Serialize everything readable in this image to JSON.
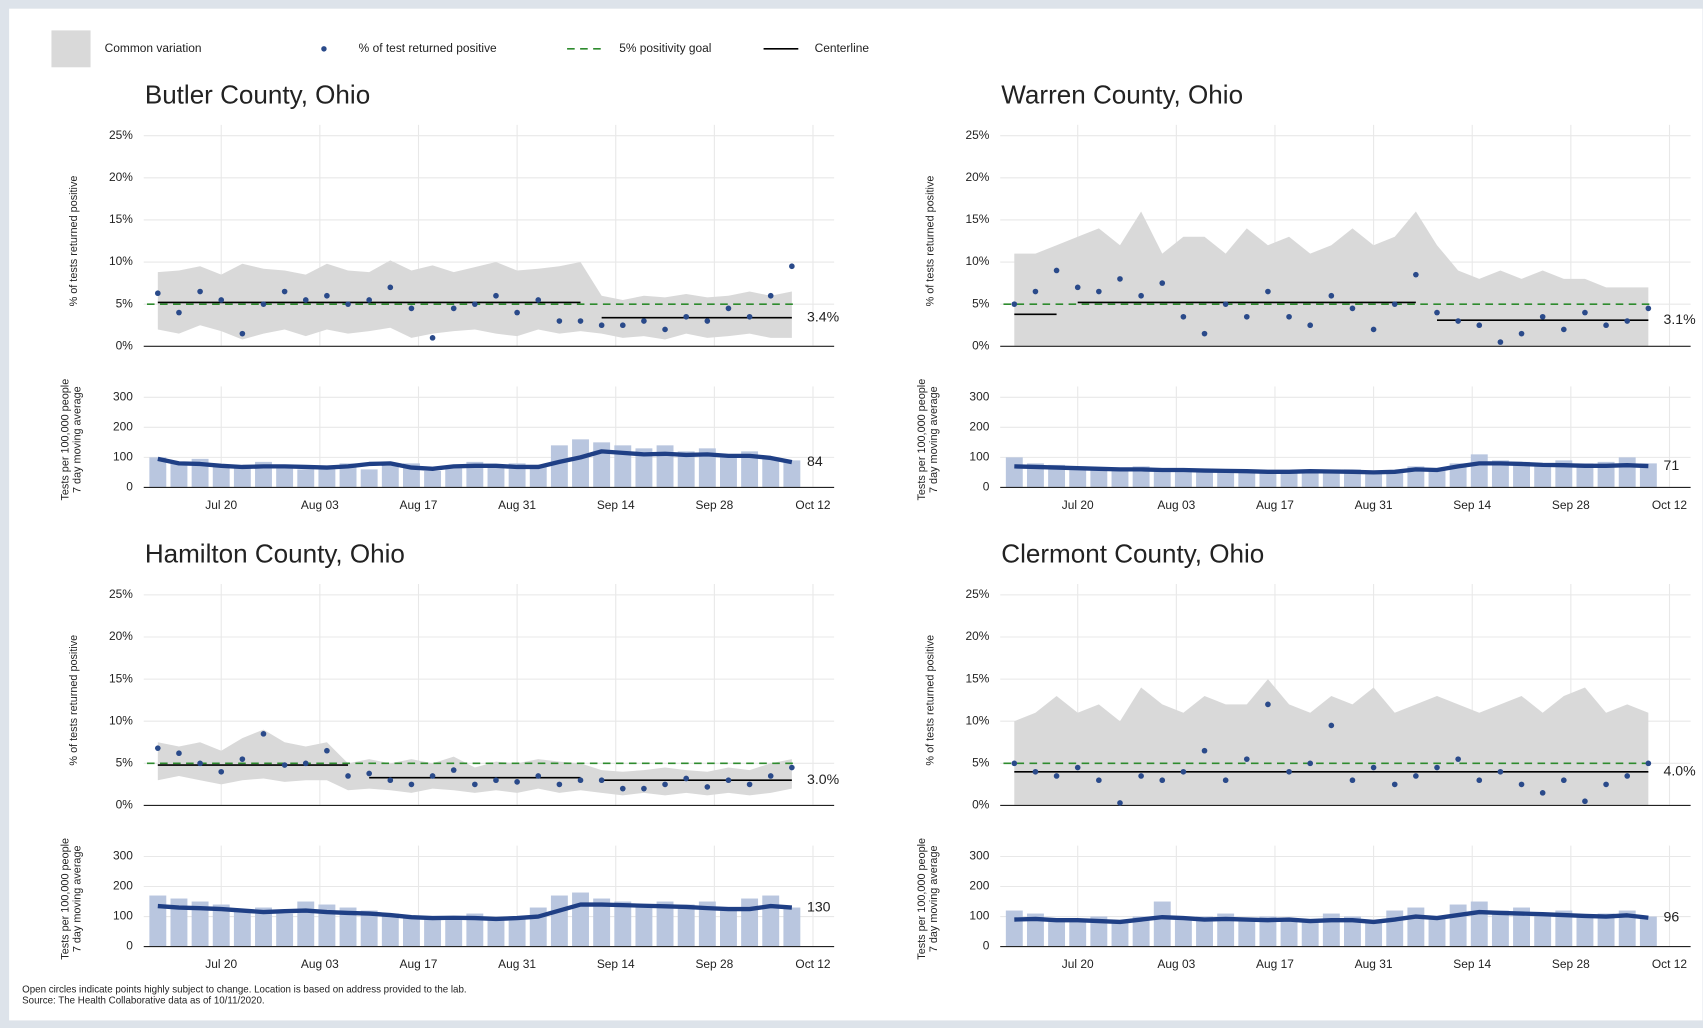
{
  "legend": {
    "band": "Common variation",
    "points": "% of test returned positive",
    "goal": "5% positivity goal",
    "centerline": "Centerline"
  },
  "footnote": [
    "Open circles indicate points highly subject to change. Location is based on address provided to the lab.",
    "Source: The Health Collaborative data as of 10/11/2020."
  ],
  "chart_data": [
    {
      "type": "control",
      "title": "Butler County, Ohio",
      "x": [
        "Jul 11",
        "Jul 14",
        "Jul 17",
        "Jul 20",
        "Jul 23",
        "Jul 26",
        "Jul 29",
        "Aug 1",
        "Aug 4",
        "Aug 7",
        "Aug 10",
        "Aug 13",
        "Aug 16",
        "Aug 19",
        "Aug 22",
        "Aug 25",
        "Aug 28",
        "Aug 31",
        "Sep 3",
        "Sep 6",
        "Sep 9",
        "Sep 12",
        "Sep 15",
        "Sep 18",
        "Sep 21",
        "Sep 24",
        "Sep 27",
        "Sep 30",
        "Oct 3",
        "Oct 6",
        "Oct 9"
      ],
      "xlim": [
        "Jul 9",
        "Oct 15"
      ],
      "xticks": [
        "Jul 20",
        "Aug 03",
        "Aug 17",
        "Aug 31",
        "Sep 14",
        "Sep 28",
        "Oct 12"
      ],
      "ylabel": "% of tests returned positive",
      "ylim": [
        0,
        25
      ],
      "yticks": [
        {
          "value": 0,
          "label": "0%"
        },
        {
          "value": 5,
          "label": "5%"
        },
        {
          "value": 10,
          "label": "10%"
        },
        {
          "value": 15,
          "label": "15%"
        },
        {
          "value": 20,
          "label": "20%"
        },
        {
          "value": 25,
          "label": "25%"
        }
      ],
      "goal": 5,
      "goal_color": "#2e8b2e",
      "band_color": "#d9d9d9",
      "series": [
        {
          "name": "% of test returned positive",
          "color": "#2a4a8a",
          "values": [
            6.3,
            4.0,
            6.5,
            5.5,
            1.5,
            5.0,
            6.5,
            5.5,
            6.0,
            5.0,
            5.5,
            7.0,
            4.5,
            1.0,
            4.5,
            5.0,
            6.0,
            4.0,
            5.5,
            3.0,
            3.0,
            2.5,
            2.5,
            3.0,
            2.0,
            3.5,
            3.0,
            4.5,
            3.5,
            6.0,
            9.5
          ]
        }
      ],
      "band_upper": [
        8.8,
        9.0,
        9.5,
        8.5,
        9.8,
        9.2,
        9.0,
        8.5,
        9.8,
        9.0,
        8.8,
        10.2,
        9.0,
        9.6,
        8.8,
        9.4,
        10.0,
        9.0,
        9.2,
        9.5,
        10.0,
        6.0,
        5.5,
        6.0,
        5.8,
        6.2,
        5.8,
        6.0,
        6.5,
        6.0,
        6.5
      ],
      "band_lower": [
        2.0,
        1.5,
        2.5,
        1.8,
        0.8,
        1.5,
        2.0,
        1.2,
        2.0,
        1.5,
        1.8,
        2.2,
        1.0,
        1.5,
        1.8,
        2.0,
        1.5,
        1.2,
        2.0,
        1.5,
        1.8,
        1.5,
        1.0,
        1.2,
        0.8,
        1.5,
        1.0,
        1.2,
        1.5,
        1.0,
        1.0
      ],
      "centerline": [
        {
          "from": "Jul 11",
          "to": "Sep 9",
          "value": 5.2
        },
        {
          "from": "Sep 12",
          "to": "Oct 9",
          "value": 3.4,
          "label": "3.4%"
        }
      ],
      "tests": {
        "ylabel": [
          "Tests per 100,000 people",
          "7 day moving average"
        ],
        "ylim": [
          0,
          300
        ],
        "yticks": [
          0,
          100,
          200,
          300
        ],
        "bar_color": "#b9c6df",
        "line_color": "#1f3f85",
        "bars": [
          100,
          80,
          95,
          70,
          65,
          85,
          75,
          60,
          70,
          80,
          60,
          75,
          80,
          55,
          70,
          85,
          70,
          80,
          75,
          140,
          160,
          150,
          140,
          130,
          140,
          120,
          130,
          110,
          120,
          100,
          90
        ],
        "average": [
          95,
          80,
          78,
          72,
          68,
          70,
          70,
          68,
          66,
          70,
          78,
          80,
          66,
          62,
          70,
          72,
          72,
          68,
          68,
          85,
          100,
          120,
          115,
          110,
          112,
          108,
          110,
          105,
          105,
          98,
          84
        ]
      }
    },
    {
      "type": "control",
      "title": "Warren County, Ohio",
      "x": [
        "Jul 11",
        "Jul 14",
        "Jul 17",
        "Jul 20",
        "Jul 23",
        "Jul 26",
        "Jul 29",
        "Aug 1",
        "Aug 4",
        "Aug 7",
        "Aug 10",
        "Aug 13",
        "Aug 16",
        "Aug 19",
        "Aug 22",
        "Aug 25",
        "Aug 28",
        "Aug 31",
        "Sep 3",
        "Sep 6",
        "Sep 9",
        "Sep 12",
        "Sep 15",
        "Sep 18",
        "Sep 21",
        "Sep 24",
        "Sep 27",
        "Sep 30",
        "Oct 3",
        "Oct 6",
        "Oct 9"
      ],
      "xlim": [
        "Jul 9",
        "Oct 15"
      ],
      "xticks": [
        "Jul 20",
        "Aug 03",
        "Aug 17",
        "Aug 31",
        "Sep 14",
        "Sep 28",
        "Oct 12"
      ],
      "ylabel": "% of tests returned positive",
      "ylim": [
        0,
        25
      ],
      "yticks": [
        {
          "value": 0,
          "label": "0%"
        },
        {
          "value": 5,
          "label": "5%"
        },
        {
          "value": 10,
          "label": "10%"
        },
        {
          "value": 15,
          "label": "15%"
        },
        {
          "value": 20,
          "label": "20%"
        },
        {
          "value": 25,
          "label": "25%"
        }
      ],
      "goal": 5,
      "goal_color": "#2e8b2e",
      "band_color": "#d9d9d9",
      "series": [
        {
          "name": "% of test returned positive",
          "color": "#2a4a8a",
          "values": [
            5.0,
            6.5,
            9.0,
            7.0,
            6.5,
            8.0,
            6.0,
            7.5,
            3.5,
            1.5,
            5.0,
            3.5,
            6.5,
            3.5,
            2.5,
            6.0,
            4.5,
            2.0,
            5.0,
            8.5,
            4.0,
            3.0,
            2.5,
            0.5,
            1.5,
            3.5,
            2.0,
            4.0,
            2.5,
            3.0,
            4.5
          ]
        }
      ],
      "band_upper": [
        11,
        11,
        12,
        13,
        14,
        12,
        16,
        11,
        13,
        13,
        11,
        14,
        12,
        13,
        11,
        12,
        14,
        12,
        13,
        16,
        12,
        9,
        8,
        9,
        8,
        9,
        8,
        8,
        7,
        7,
        7
      ],
      "band_lower": [
        0,
        0,
        0,
        0,
        0,
        0,
        0,
        0,
        0,
        0,
        0,
        0,
        0,
        0,
        0,
        0,
        0,
        0,
        0,
        0,
        0,
        0,
        0,
        0,
        0,
        0,
        0,
        0,
        0,
        0,
        0
      ],
      "centerline": [
        {
          "from": "Jul 11",
          "to": "Jul 17",
          "value": 3.8
        },
        {
          "from": "Jul 20",
          "to": "Sep 6",
          "value": 5.2
        },
        {
          "from": "Sep 9",
          "to": "Oct 9",
          "value": 3.1,
          "label": "3.1%"
        }
      ],
      "tests": {
        "ylabel": [
          "Tests per 100,000 people",
          "7 day moving average"
        ],
        "ylim": [
          0,
          300
        ],
        "yticks": [
          0,
          100,
          200,
          300
        ],
        "bar_color": "#b9c6df",
        "line_color": "#1f3f85",
        "bars": [
          100,
          80,
          75,
          70,
          65,
          60,
          70,
          55,
          60,
          55,
          60,
          50,
          55,
          50,
          55,
          55,
          60,
          50,
          55,
          70,
          60,
          80,
          110,
          90,
          85,
          80,
          90,
          80,
          85,
          100,
          80
        ],
        "average": [
          70,
          68,
          66,
          64,
          62,
          60,
          60,
          58,
          58,
          56,
          55,
          54,
          52,
          52,
          54,
          53,
          52,
          50,
          52,
          60,
          58,
          70,
          80,
          80,
          78,
          75,
          74,
          72,
          72,
          74,
          71
        ]
      }
    },
    {
      "type": "control",
      "title": "Hamilton County, Ohio",
      "x": [
        "Jul 11",
        "Jul 14",
        "Jul 17",
        "Jul 20",
        "Jul 23",
        "Jul 26",
        "Jul 29",
        "Aug 1",
        "Aug 4",
        "Aug 7",
        "Aug 10",
        "Aug 13",
        "Aug 16",
        "Aug 19",
        "Aug 22",
        "Aug 25",
        "Aug 28",
        "Aug 31",
        "Sep 3",
        "Sep 6",
        "Sep 9",
        "Sep 12",
        "Sep 15",
        "Sep 18",
        "Sep 21",
        "Sep 24",
        "Sep 27",
        "Sep 30",
        "Oct 3",
        "Oct 6",
        "Oct 9"
      ],
      "xlim": [
        "Jul 9",
        "Oct 15"
      ],
      "xticks": [
        "Jul 20",
        "Aug 03",
        "Aug 17",
        "Aug 31",
        "Sep 14",
        "Sep 28",
        "Oct 12"
      ],
      "ylabel": "% of tests returned positive",
      "ylim": [
        0,
        25
      ],
      "yticks": [
        {
          "value": 0,
          "label": "0%"
        },
        {
          "value": 5,
          "label": "5%"
        },
        {
          "value": 10,
          "label": "10%"
        },
        {
          "value": 15,
          "label": "15%"
        },
        {
          "value": 20,
          "label": "20%"
        },
        {
          "value": 25,
          "label": "25%"
        }
      ],
      "goal": 5,
      "goal_color": "#2e8b2e",
      "band_color": "#d9d9d9",
      "series": [
        {
          "name": "% of test returned positive",
          "color": "#2a4a8a",
          "values": [
            6.8,
            6.2,
            5.0,
            4.0,
            5.5,
            8.5,
            4.8,
            5.0,
            6.5,
            3.5,
            3.8,
            3.0,
            2.5,
            3.5,
            4.2,
            2.5,
            3.0,
            2.8,
            3.5,
            2.5,
            3.0,
            3.0,
            2.0,
            2.0,
            2.5,
            3.2,
            2.2,
            3.0,
            2.5,
            3.5,
            4.5
          ]
        }
      ],
      "band_upper": [
        7.5,
        7.0,
        7.5,
        6.5,
        8.0,
        9.0,
        7.5,
        7.0,
        7.5,
        5.0,
        5.5,
        5.0,
        5.5,
        5.0,
        5.8,
        4.5,
        5.2,
        5.0,
        5.5,
        5.2,
        5.0,
        4.2,
        4.0,
        4.2,
        4.5,
        4.2,
        4.0,
        4.5,
        4.2,
        5.0,
        5.5
      ],
      "band_lower": [
        3.0,
        3.5,
        3.0,
        2.5,
        3.0,
        3.2,
        2.8,
        3.0,
        3.0,
        1.8,
        2.0,
        1.8,
        1.5,
        2.0,
        1.8,
        1.5,
        1.8,
        1.5,
        2.0,
        1.5,
        1.8,
        1.5,
        1.2,
        1.5,
        1.2,
        1.5,
        1.2,
        1.5,
        1.2,
        1.5,
        2.0
      ],
      "centerline": [
        {
          "from": "Jul 11",
          "to": "Aug 7",
          "value": 4.8
        },
        {
          "from": "Aug 10",
          "to": "Sep 9",
          "value": 3.3
        },
        {
          "from": "Sep 12",
          "to": "Oct 9",
          "value": 3.0,
          "label": "3.0%"
        }
      ],
      "tests": {
        "ylabel": [
          "Tests per 100,000 people",
          "7 day moving average"
        ],
        "ylim": [
          0,
          300
        ],
        "yticks": [
          0,
          100,
          200,
          300
        ],
        "bar_color": "#b9c6df",
        "line_color": "#1f3f85",
        "bars": [
          170,
          160,
          150,
          140,
          120,
          130,
          110,
          150,
          140,
          130,
          120,
          110,
          100,
          90,
          100,
          110,
          95,
          100,
          130,
          170,
          180,
          160,
          150,
          140,
          150,
          140,
          150,
          130,
          160,
          170,
          130
        ],
        "average": [
          135,
          130,
          128,
          125,
          120,
          115,
          118,
          120,
          115,
          112,
          110,
          105,
          98,
          95,
          96,
          95,
          92,
          95,
          100,
          120,
          140,
          140,
          138,
          136,
          134,
          132,
          128,
          125,
          125,
          135,
          130
        ]
      }
    },
    {
      "type": "control",
      "title": "Clermont County, Ohio",
      "x": [
        "Jul 11",
        "Jul 14",
        "Jul 17",
        "Jul 20",
        "Jul 23",
        "Jul 26",
        "Jul 29",
        "Aug 1",
        "Aug 4",
        "Aug 7",
        "Aug 10",
        "Aug 13",
        "Aug 16",
        "Aug 19",
        "Aug 22",
        "Aug 25",
        "Aug 28",
        "Aug 31",
        "Sep 3",
        "Sep 6",
        "Sep 9",
        "Sep 12",
        "Sep 15",
        "Sep 18",
        "Sep 21",
        "Sep 24",
        "Sep 27",
        "Sep 30",
        "Oct 3",
        "Oct 6",
        "Oct 9"
      ],
      "xlim": [
        "Jul 9",
        "Oct 15"
      ],
      "xticks": [
        "Jul 20",
        "Aug 03",
        "Aug 17",
        "Aug 31",
        "Sep 14",
        "Sep 28",
        "Oct 12"
      ],
      "ylabel": "% of tests returned positive",
      "ylim": [
        0,
        25
      ],
      "yticks": [
        {
          "value": 0,
          "label": "0%"
        },
        {
          "value": 5,
          "label": "5%"
        },
        {
          "value": 10,
          "label": "10%"
        },
        {
          "value": 15,
          "label": "15%"
        },
        {
          "value": 20,
          "label": "20%"
        },
        {
          "value": 25,
          "label": "25%"
        }
      ],
      "goal": 5,
      "goal_color": "#2e8b2e",
      "band_color": "#d9d9d9",
      "series": [
        {
          "name": "% of test returned positive",
          "color": "#2a4a8a",
          "values": [
            5.0,
            4.0,
            3.5,
            4.5,
            3.0,
            0.3,
            3.5,
            3.0,
            4.0,
            6.5,
            3.0,
            5.5,
            12.0,
            4.0,
            5.0,
            9.5,
            3.0,
            4.5,
            2.5,
            3.5,
            4.5,
            5.5,
            3.0,
            4.0,
            2.5,
            1.5,
            3.0,
            0.5,
            2.5,
            3.5,
            5.0
          ]
        }
      ],
      "band_upper": [
        10,
        11,
        13,
        11,
        12,
        10,
        14,
        12,
        11,
        13,
        12,
        12,
        15,
        12,
        11,
        13,
        12,
        14,
        11,
        12,
        13,
        12,
        11,
        12,
        13,
        11,
        13,
        14,
        11,
        12,
        11
      ],
      "band_lower": [
        0,
        0,
        0,
        0,
        0,
        0,
        0,
        0,
        0,
        0,
        0,
        0,
        0,
        0,
        0,
        0,
        0,
        0,
        0,
        0,
        0,
        0,
        0,
        0,
        0,
        0,
        0,
        0,
        0,
        0,
        0
      ],
      "centerline": [
        {
          "from": "Jul 11",
          "to": "Oct 9",
          "value": 4.0,
          "label": "4.0%"
        }
      ],
      "tests": {
        "ylabel": [
          "Tests per 100,000 people",
          "7 day moving average"
        ],
        "ylim": [
          0,
          300
        ],
        "yticks": [
          0,
          100,
          200,
          300
        ],
        "bar_color": "#b9c6df",
        "line_color": "#1f3f85",
        "bars": [
          120,
          110,
          90,
          85,
          100,
          80,
          100,
          150,
          90,
          100,
          110,
          85,
          100,
          95,
          90,
          110,
          100,
          85,
          120,
          130,
          100,
          140,
          150,
          120,
          130,
          110,
          120,
          100,
          110,
          120,
          100
        ],
        "average": [
          90,
          92,
          88,
          88,
          85,
          82,
          90,
          98,
          95,
          90,
          92,
          90,
          88,
          90,
          85,
          88,
          88,
          82,
          90,
          100,
          95,
          105,
          115,
          112,
          110,
          108,
          105,
          102,
          100,
          104,
          96
        ]
      }
    }
  ]
}
